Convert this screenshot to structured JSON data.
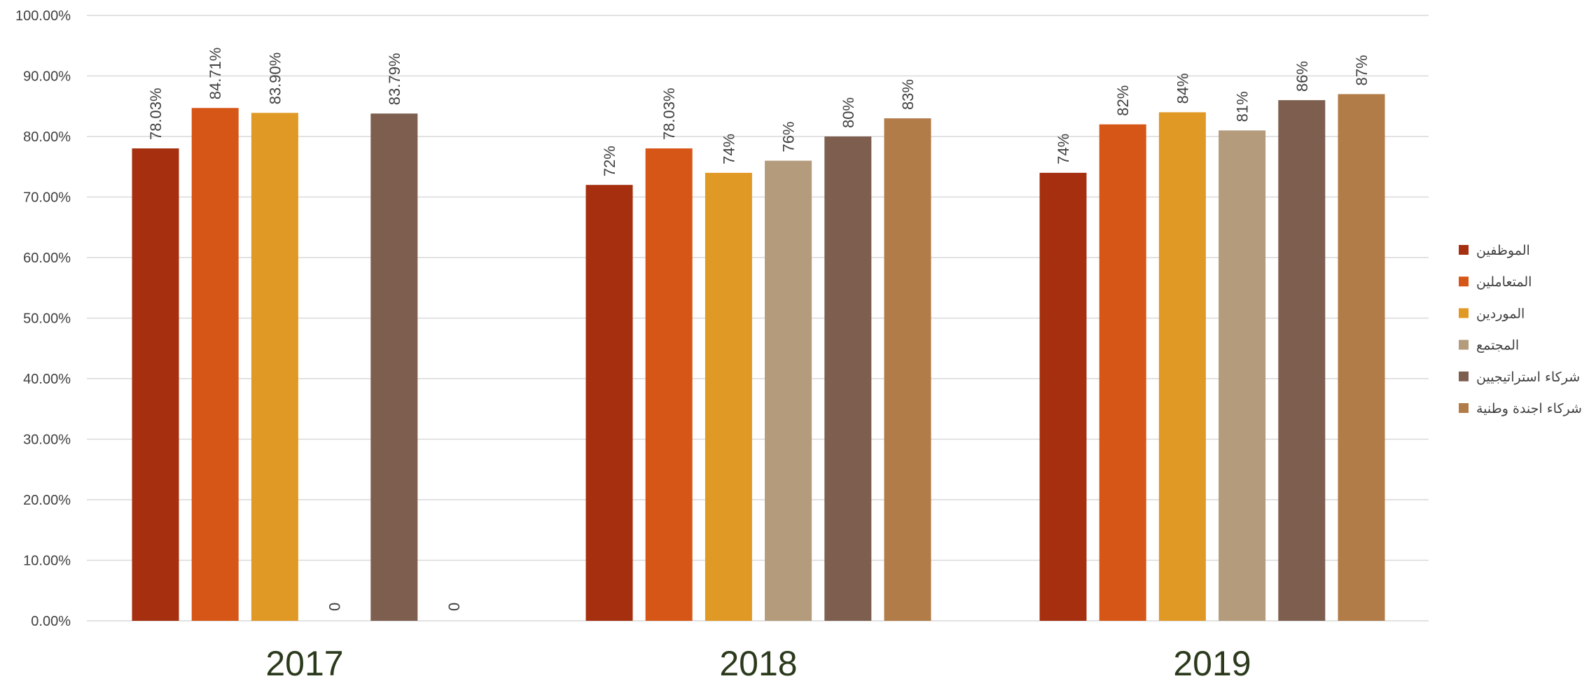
{
  "chart_data": {
    "type": "bar",
    "categories": [
      "2017",
      "2018",
      "2019"
    ],
    "series": [
      {
        "name": "الموظفين",
        "color": "#a52f0f",
        "values": [
          78.03,
          72,
          74
        ],
        "labels": [
          "78.03%",
          "72%",
          "74%"
        ]
      },
      {
        "name": "المتعاملين",
        "color": "#d65617",
        "values": [
          84.71,
          78.03,
          82
        ],
        "labels": [
          "84.71%",
          "78.03%",
          "82%"
        ]
      },
      {
        "name": "الموردين",
        "color": "#e19926",
        "values": [
          83.9,
          74,
          84
        ],
        "labels": [
          "83.90%",
          "74%",
          "84%"
        ]
      },
      {
        "name": "المجتمع",
        "color": "#b39b7c",
        "values": [
          0,
          76,
          81
        ],
        "labels": [
          "0",
          "76%",
          "81%"
        ]
      },
      {
        "name": "شركاء استراتيجيين",
        "color": "#7d5e4f",
        "values": [
          83.79,
          80,
          86
        ],
        "labels": [
          "83.79%",
          "80%",
          "86%"
        ]
      },
      {
        "name": "شركاء اجندة وطنية",
        "color": "#b27c49",
        "values": [
          0,
          83,
          87
        ],
        "labels": [
          "0",
          "83%",
          "87%"
        ]
      }
    ],
    "ylim": [
      0,
      100
    ],
    "yticks": [
      "0.00%",
      "10.00%",
      "20.00%",
      "30.00%",
      "40.00%",
      "50.00%",
      "60.00%",
      "70.00%",
      "80.00%",
      "90.00%",
      "100.00%"
    ],
    "title": "",
    "xlabel": "",
    "ylabel": "",
    "grid": true,
    "legend": "right",
    "colors": {
      "gridline": "#d9d9d9",
      "tick_text": "#404040",
      "category_text": "#2b3a1c",
      "label_text": "#404040"
    }
  }
}
